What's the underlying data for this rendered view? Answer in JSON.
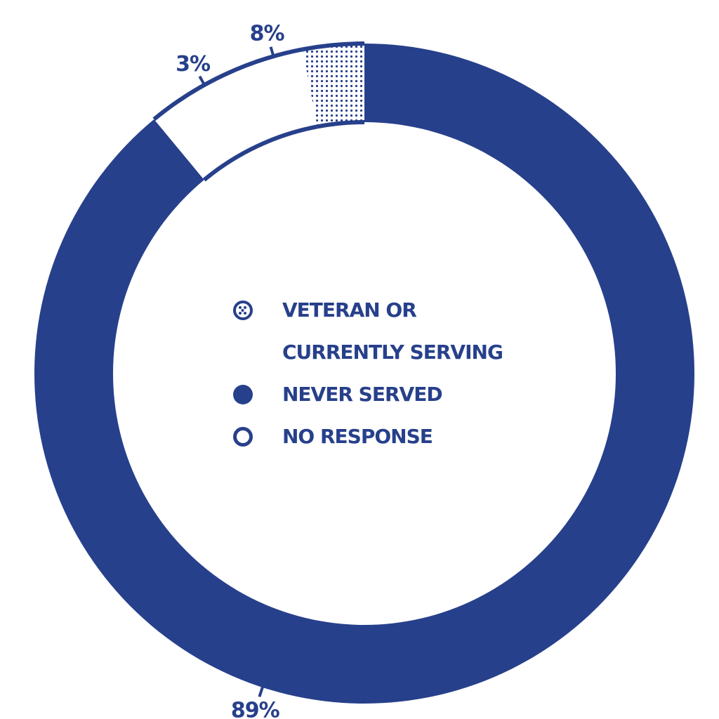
{
  "colors": {
    "primary": "#27408b",
    "background": "#ffffff"
  },
  "chart_data": {
    "type": "pie",
    "donut": true,
    "slices": [
      {
        "key": "never_served",
        "value": 89,
        "label": "89%",
        "fill": "solid"
      },
      {
        "key": "no_response",
        "value": 8,
        "label": "8%",
        "fill": "outline"
      },
      {
        "key": "veteran",
        "value": 3,
        "label": "3%",
        "fill": "dots"
      }
    ],
    "legend": [
      {
        "key": "veteran",
        "lines": [
          "VETERAN OR",
          "CURRENTLY SERVING"
        ],
        "fill": "dots"
      },
      {
        "key": "never_served",
        "lines": [
          "NEVER SERVED"
        ],
        "fill": "solid"
      },
      {
        "key": "no_response",
        "lines": [
          "NO RESPONSE"
        ],
        "fill": "outline"
      }
    ],
    "legend_placement": "center"
  }
}
